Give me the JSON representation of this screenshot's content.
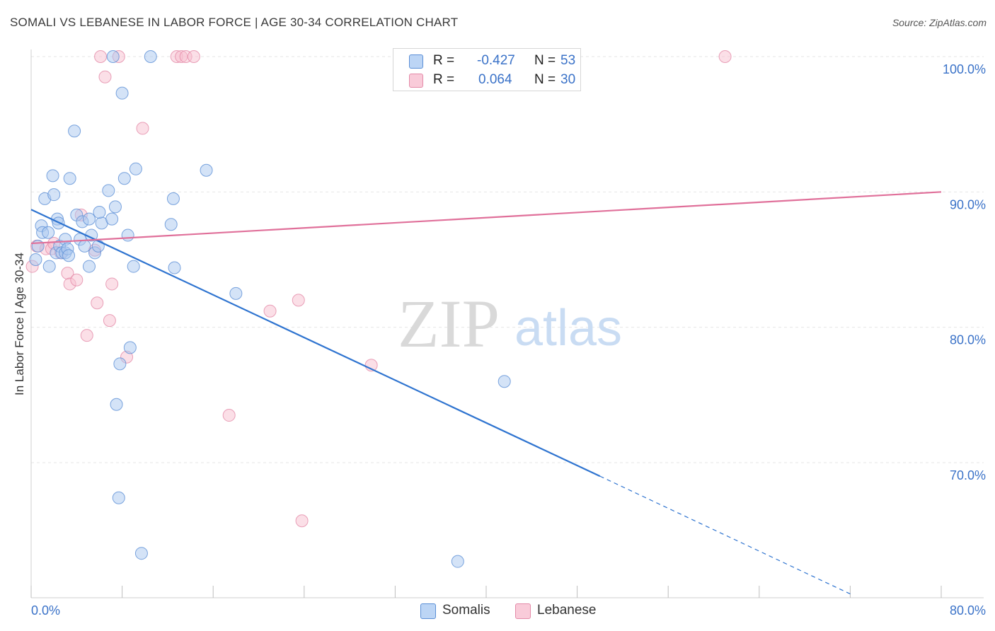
{
  "title": "SOMALI VS LEBANESE IN LABOR FORCE | AGE 30-34 CORRELATION CHART",
  "source": "Source: ZipAtlas.com",
  "watermark": {
    "zip": "ZIP",
    "atlas": "atlas"
  },
  "legend_top": {
    "rows": [
      {
        "r_label": "R =",
        "r_value": "-0.427",
        "n_label": "N =",
        "n_value": "53",
        "color": "#a9c8f0",
        "border": "#5b8fd6"
      },
      {
        "r_label": "R =",
        "r_value": "0.064",
        "n_label": "N =",
        "n_value": "30",
        "color": "#f7c0d0",
        "border": "#e48aa8"
      }
    ]
  },
  "legend_bottom": {
    "somali": "Somalis",
    "lebanese": "Lebanese"
  },
  "chart_data": {
    "type": "scatter",
    "title": "SOMALI VS LEBANESE IN LABOR FORCE | AGE 30-34 CORRELATION CHART",
    "xlabel": "",
    "ylabel": "In Labor Force | Age 30-34",
    "xlim": [
      0,
      80
    ],
    "ylim": [
      60,
      102
    ],
    "x_tick_labels": [
      "0.0%",
      "80.0%"
    ],
    "y_ticks": [
      70,
      80,
      90,
      100
    ],
    "y_tick_labels": [
      "70.0%",
      "80.0%",
      "90.0%",
      "100.0%"
    ],
    "grid": true,
    "series": [
      {
        "name": "Somalis",
        "color": "#5b8fd6",
        "fill": "#a9c8f0",
        "trend": {
          "x0": 0,
          "y0": 88.7,
          "x1": 50,
          "y1": 69.0,
          "dash_to_x": 72,
          "dash_to_y": 60.3
        },
        "points": [
          [
            0.4,
            85.0
          ],
          [
            0.6,
            86.0
          ],
          [
            0.9,
            87.5
          ],
          [
            1.0,
            87.0
          ],
          [
            1.2,
            89.5
          ],
          [
            1.5,
            87.0
          ],
          [
            1.6,
            84.5
          ],
          [
            1.9,
            91.2
          ],
          [
            2.0,
            89.8
          ],
          [
            2.2,
            85.5
          ],
          [
            2.3,
            88.0
          ],
          [
            2.4,
            87.7
          ],
          [
            2.5,
            86.0
          ],
          [
            2.7,
            85.5
          ],
          [
            3.0,
            85.5
          ],
          [
            3.0,
            86.5
          ],
          [
            3.2,
            85.8
          ],
          [
            3.3,
            85.3
          ],
          [
            3.4,
            91.0
          ],
          [
            3.8,
            94.5
          ],
          [
            4.0,
            88.3
          ],
          [
            4.3,
            86.5
          ],
          [
            4.5,
            87.8
          ],
          [
            4.7,
            86.0
          ],
          [
            5.1,
            88.0
          ],
          [
            5.1,
            84.5
          ],
          [
            5.3,
            86.8
          ],
          [
            5.6,
            85.5
          ],
          [
            5.9,
            86.0
          ],
          [
            6.2,
            87.7
          ],
          [
            6.8,
            90.1
          ],
          [
            7.1,
            88.0
          ],
          [
            7.2,
            100.0
          ],
          [
            7.4,
            88.9
          ],
          [
            7.8,
            77.3
          ],
          [
            8.0,
            97.3
          ],
          [
            8.2,
            91.0
          ],
          [
            8.5,
            86.8
          ],
          [
            9.0,
            84.5
          ],
          [
            9.2,
            91.7
          ],
          [
            9.7,
            63.3
          ],
          [
            10.5,
            100.0
          ],
          [
            12.3,
            87.6
          ],
          [
            12.5,
            89.5
          ],
          [
            12.6,
            84.4
          ],
          [
            15.4,
            91.6
          ],
          [
            18.0,
            82.5
          ],
          [
            8.7,
            78.5
          ],
          [
            7.5,
            74.3
          ],
          [
            7.7,
            67.4
          ],
          [
            37.5,
            62.7
          ],
          [
            41.6,
            76.0
          ],
          [
            6.0,
            88.5
          ]
        ]
      },
      {
        "name": "Lebanese",
        "color": "#e48aa8",
        "fill": "#f7c0d0",
        "trend": {
          "x0": 0,
          "y0": 86.2,
          "x1": 80,
          "y1": 90.0
        },
        "points": [
          [
            0.1,
            84.5
          ],
          [
            0.5,
            86.0
          ],
          [
            1.3,
            85.8
          ],
          [
            1.8,
            85.8
          ],
          [
            2.0,
            86.2
          ],
          [
            3.2,
            84.0
          ],
          [
            3.4,
            83.2
          ],
          [
            4.0,
            83.5
          ],
          [
            4.4,
            88.3
          ],
          [
            4.9,
            79.4
          ],
          [
            5.6,
            85.7
          ],
          [
            5.8,
            81.8
          ],
          [
            6.1,
            100.0
          ],
          [
            6.5,
            98.5
          ],
          [
            6.9,
            80.5
          ],
          [
            7.1,
            83.2
          ],
          [
            7.7,
            100.0
          ],
          [
            8.4,
            77.8
          ],
          [
            9.8,
            94.7
          ],
          [
            12.8,
            100.0
          ],
          [
            13.2,
            100.0
          ],
          [
            13.6,
            100.0
          ],
          [
            14.3,
            100.0
          ],
          [
            17.4,
            73.5
          ],
          [
            21.0,
            81.2
          ],
          [
            23.5,
            82.0
          ],
          [
            23.8,
            65.7
          ],
          [
            29.9,
            77.2
          ],
          [
            61.0,
            100.0
          ],
          [
            2.6,
            85.5
          ]
        ]
      }
    ]
  }
}
